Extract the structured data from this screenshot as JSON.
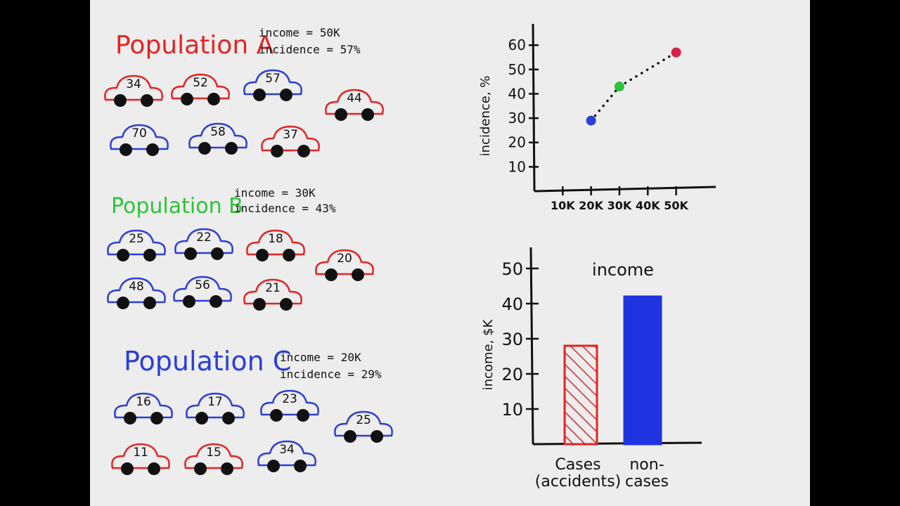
{
  "populations": [
    {
      "title": "Population A",
      "color": "#e32424",
      "income_label": "income = 50K",
      "incidence_label": "incidence = 57%",
      "cars": [
        {
          "label": "34",
          "color": "#e32424"
        },
        {
          "label": "52",
          "color": "#e32424"
        },
        {
          "label": "57",
          "color": "#2b3fd6"
        },
        {
          "label": "44",
          "color": "#e32424"
        },
        {
          "label": "70",
          "color": "#2b3fd6"
        },
        {
          "label": "58",
          "color": "#2b3fd6"
        },
        {
          "label": "37",
          "color": "#e32424"
        }
      ]
    },
    {
      "title": "Population B",
      "color": "#2fc23a",
      "income_label": "income = 30K",
      "incidence_label": "incidence = 43%",
      "cars": [
        {
          "label": "25",
          "color": "#2b3fd6"
        },
        {
          "label": "22",
          "color": "#2b3fd6"
        },
        {
          "label": "18",
          "color": "#e32424"
        },
        {
          "label": "20",
          "color": "#e32424"
        },
        {
          "label": "48",
          "color": "#2b3fd6"
        },
        {
          "label": "56",
          "color": "#2b3fd6"
        },
        {
          "label": "21",
          "color": "#e32424"
        }
      ]
    },
    {
      "title": "Population C",
      "color": "#2b3fd6",
      "income_label": "income = 20K",
      "incidence_label": "incidence = 29%",
      "cars": [
        {
          "label": "16",
          "color": "#2b3fd6"
        },
        {
          "label": "17",
          "color": "#2b3fd6"
        },
        {
          "label": "23",
          "color": "#2b3fd6"
        },
        {
          "label": "25",
          "color": "#2b3fd6"
        },
        {
          "label": "11",
          "color": "#e32424"
        },
        {
          "label": "15",
          "color": "#e32424"
        },
        {
          "label": "34",
          "color": "#2b3fd6"
        }
      ]
    }
  ],
  "chart_data": [
    {
      "type": "scatter",
      "title": "",
      "xlabel": "",
      "ylabel": "incidence, %",
      "x_ticks": [
        "10K",
        "20K",
        "30K",
        "40K",
        "50K"
      ],
      "x_tick_values": [
        10,
        20,
        30,
        40,
        50
      ],
      "y_ticks": [
        "10",
        "20",
        "30",
        "40",
        "50",
        "60"
      ],
      "y_tick_values": [
        10,
        20,
        30,
        40,
        50,
        60
      ],
      "xlim": [
        0,
        62
      ],
      "ylim": [
        0,
        67
      ],
      "grid": false,
      "points": [
        {
          "x": 20,
          "y": 29,
          "color": "#2b3fd6"
        },
        {
          "x": 30,
          "y": 43,
          "color": "#2fc23a"
        },
        {
          "x": 50,
          "y": 57,
          "color": "#d6204a"
        }
      ],
      "trend": "dotted"
    },
    {
      "type": "bar",
      "title": "income",
      "xlabel": "",
      "ylabel": "income, $K",
      "categories": [
        "Cases (accidents)",
        "non-cases"
      ],
      "category_lines": [
        [
          "Cases",
          "(accidents)"
        ],
        [
          "non-",
          "cases"
        ]
      ],
      "values": [
        28,
        42
      ],
      "colors": [
        "#e32424",
        "#1f34e0"
      ],
      "styles": [
        "hatched",
        "solid"
      ],
      "y_ticks": [
        "10",
        "20",
        "30",
        "40",
        "50"
      ],
      "y_tick_values": [
        10,
        20,
        30,
        40,
        50
      ],
      "ylim": [
        0,
        54
      ],
      "grid": false
    }
  ]
}
